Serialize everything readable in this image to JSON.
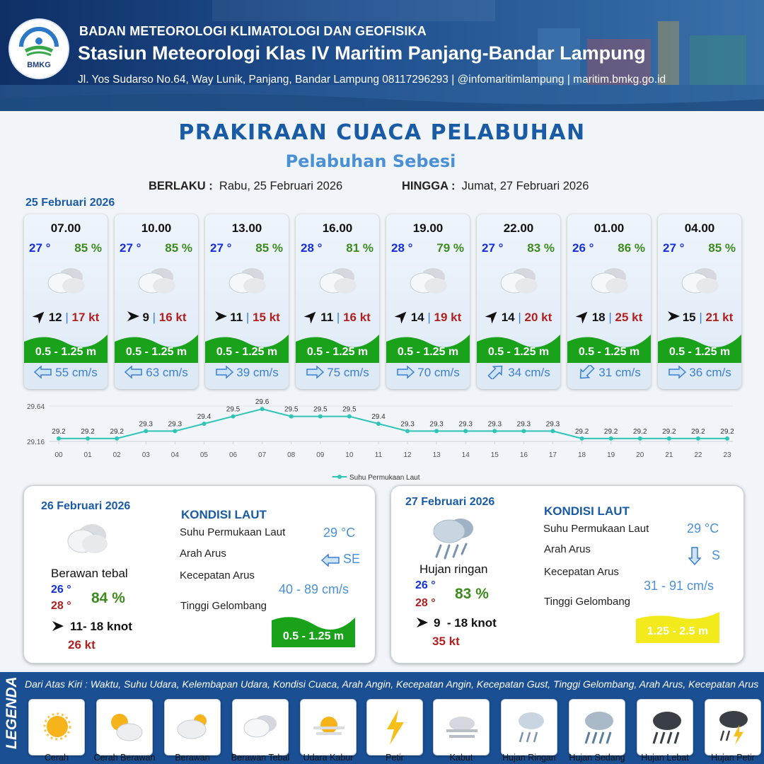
{
  "header": {
    "logo_text": "BMKG",
    "org": "BADAN METEOROLOGI KLIMATOLOGI DAN GEOFISIKA",
    "station": "Stasiun Meteorologi Klas IV Maritim Panjang-Bandar Lampung",
    "address": "Jl. Yos Sudarso No.64, Way Lunik, Panjang, Bandar Lampung 08117296293 | @infomaritimlampung | maritim.bmkg.go.id"
  },
  "title": "PRAKIRAAN CUACA PELABUHAN",
  "subtitle": "Pelabuhan Sebesi",
  "validity": {
    "from_label": "BERLAKU :",
    "from": "Rabu, 25 Februari 2026",
    "to_label": "HINGGA :",
    "to": "Jumat, 27 Februari 2026"
  },
  "day1_date": "25 Februari 2026",
  "hourly": [
    {
      "time": "07.00",
      "temp": "27 °",
      "hum": "85 %",
      "wind_dir": "NE",
      "wind": "12",
      "gust": "17 kt",
      "wave": "0.5 - 1.25 m",
      "current_dir": "W",
      "current": "55 cm/s"
    },
    {
      "time": "10.00",
      "temp": "27 °",
      "hum": "85 %",
      "wind_dir": "E",
      "wind": "9",
      "gust": "16 kt",
      "wave": "0.5 - 1.25 m",
      "current_dir": "W",
      "current": "63 cm/s"
    },
    {
      "time": "13.00",
      "temp": "27 °",
      "hum": "85 %",
      "wind_dir": "E",
      "wind": "11",
      "gust": "15 kt",
      "wave": "0.5 - 1.25 m",
      "current_dir": "E",
      "current": "39 cm/s"
    },
    {
      "time": "16.00",
      "temp": "28 °",
      "hum": "81 %",
      "wind_dir": "NE",
      "wind": "11",
      "gust": "16 kt",
      "wave": "0.5 - 1.25 m",
      "current_dir": "E",
      "current": "75 cm/s"
    },
    {
      "time": "19.00",
      "temp": "28 °",
      "hum": "79 %",
      "wind_dir": "NE",
      "wind": "14",
      "gust": "19 kt",
      "wave": "0.5 - 1.25 m",
      "current_dir": "E",
      "current": "70 cm/s"
    },
    {
      "time": "22.00",
      "temp": "27 °",
      "hum": "83 %",
      "wind_dir": "NE",
      "wind": "14",
      "gust": "20 kt",
      "wave": "0.5 - 1.25 m",
      "current_dir": "NE",
      "current": "34 cm/s"
    },
    {
      "time": "01.00",
      "temp": "26 °",
      "hum": "86 %",
      "wind_dir": "NE",
      "wind": "18",
      "gust": "25 kt",
      "wave": "0.5 - 1.25 m",
      "current_dir": "SW",
      "current": "31 cm/s"
    },
    {
      "time": "04.00",
      "temp": "27 °",
      "hum": "85 %",
      "wind_dir": "E",
      "wind": "15",
      "gust": "21 kt",
      "wave": "0.5 - 1.25 m",
      "current_dir": "E",
      "current": "36 cm/s"
    }
  ],
  "chart_data": {
    "type": "line",
    "x": [
      "00",
      "01",
      "02",
      "03",
      "04",
      "05",
      "06",
      "07",
      "08",
      "09",
      "10",
      "11",
      "12",
      "13",
      "14",
      "15",
      "16",
      "17",
      "18",
      "19",
      "20",
      "21",
      "22",
      "23"
    ],
    "series": [
      {
        "name": "Suhu Permukaan Laut",
        "values": [
          29.2,
          29.2,
          29.2,
          29.3,
          29.3,
          29.4,
          29.5,
          29.6,
          29.5,
          29.5,
          29.5,
          29.4,
          29.3,
          29.3,
          29.3,
          29.3,
          29.3,
          29.3,
          29.2,
          29.2,
          29.2,
          29.2,
          29.2,
          29.2
        ]
      }
    ],
    "data_labels": [
      "29.2",
      "29.2",
      "29.2",
      "29.3",
      "29.3",
      "29.4",
      "29.5",
      "29.6",
      "29.5",
      "29.5",
      "29.5",
      "29.4",
      "29.3",
      "29.3",
      "29.3",
      "29.3",
      "29.3",
      "29.3",
      "29.2",
      "29.2",
      "29.2",
      "29.2",
      "29.2",
      "29.2"
    ],
    "ytick_labels": [
      "29.64",
      "29.16"
    ],
    "ylim": [
      29.16,
      29.64
    ],
    "line_color": "#2ec4b6",
    "grid": true,
    "legend": "bottom-center"
  },
  "daily": [
    {
      "date": "26 Februari 2026",
      "kondisi_title": "KONDISI LAUT",
      "condition": "Berawan tebal",
      "tmin": "26 °",
      "tmax": "28 °",
      "hum": "84 %",
      "wind": "11- 18 knot",
      "gust": "26 kt",
      "sst_label": "Suhu Permukaan Laut",
      "sst": "29 °C",
      "cur_dir_label": "Arah Arus",
      "cur_dir": "SE",
      "cur_spd_label": "Kecepatan Arus",
      "cur_spd": "40 - 89 cm/s",
      "wave_label": "Tinggi Gelombang",
      "wave": "0.5 - 1.25 m",
      "wave_color": "#1aa31a"
    },
    {
      "date": "27 Februari 2026",
      "kondisi_title": "KONDISI LAUT",
      "condition": "Hujan ringan",
      "tmin": "26 °",
      "tmax": "28 °",
      "hum": "83 %",
      "wind": "9  - 18 knot",
      "gust": "35 kt",
      "sst_label": "Suhu Permukaan Laut",
      "sst": "29 °C",
      "cur_dir_label": "Arah Arus",
      "cur_dir": "S",
      "cur_spd_label": "Kecepatan Arus",
      "cur_spd": "31 - 91 cm/s",
      "wave_label": "Tinggi Gelombang",
      "wave": "1.25 - 2.5 m",
      "wave_color": "#f2ea1a"
    }
  ],
  "legend": {
    "title": "LEGENDA",
    "description": "Dari Atas Kiri : Waktu, Suhu Udara, Kelembapan Udara, Kondisi Cuaca, Arah Angin, Kecepatan Angin, Kecepatan Gust, Tinggi Gelombang, Arah Arus, Kecepatan Arus",
    "items": [
      {
        "label": "Cerah",
        "icon": "sun-icon"
      },
      {
        "label": "Cerah Berawan",
        "icon": "sun-cloud-icon"
      },
      {
        "label": "Berawan",
        "icon": "cloud-sun-icon"
      },
      {
        "label": "Berawan Tebal",
        "icon": "thick-cloud-icon"
      },
      {
        "label": "Udara Kabur",
        "icon": "haze-icon"
      },
      {
        "label": "Petir",
        "icon": "lightning-icon"
      },
      {
        "label": "Kabut",
        "icon": "fog-icon"
      },
      {
        "label": "Hujan Ringan",
        "icon": "light-rain-icon"
      },
      {
        "label": "Hujan Sedang",
        "icon": "moderate-rain-icon"
      },
      {
        "label": "Hujan Lebat",
        "icon": "heavy-rain-icon"
      },
      {
        "label": "Hujan Petir",
        "icon": "thunderstorm-icon"
      }
    ]
  }
}
